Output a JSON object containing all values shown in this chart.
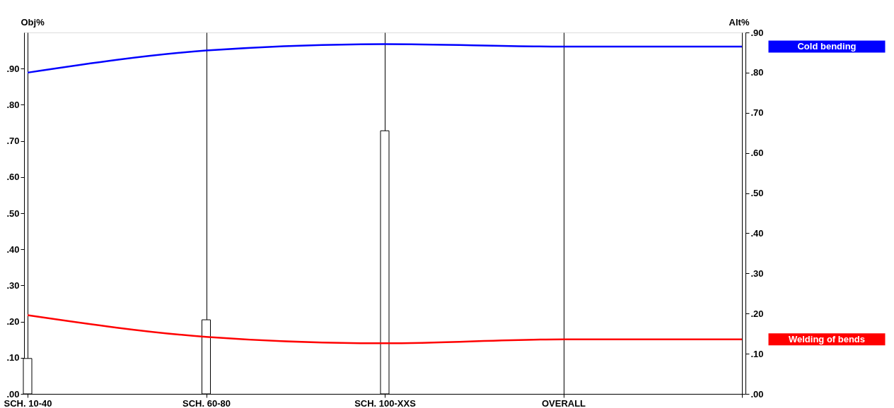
{
  "chart_data": {
    "type": "bar",
    "ylabel": "Obj%",
    "y2label": "Alt%",
    "categories": [
      "SCH. 10-40",
      "SCH. 60-80",
      "SCH. 100-XXS",
      "OVERALL",
      null
    ],
    "ylim": [
      0,
      1.0
    ],
    "yticks": [
      {
        "value": 0,
        "label": ".00"
      },
      {
        "value": 0.1,
        "label": ".10"
      },
      {
        "value": 0.2,
        "label": ".20"
      },
      {
        "value": 0.3,
        "label": ".30"
      },
      {
        "value": 0.4,
        "label": ".40"
      },
      {
        "value": 0.5,
        "label": ".50"
      },
      {
        "value": 0.6,
        "label": ".60"
      },
      {
        "value": 0.7,
        "label": ".70"
      },
      {
        "value": 0.8,
        "label": ".80"
      },
      {
        "value": 0.9,
        "label": ".90"
      }
    ],
    "y2lim": [
      0,
      0.9
    ],
    "y2ticks": [
      {
        "value": 0,
        "label": ".00"
      },
      {
        "value": 0.1,
        "label": ".10"
      },
      {
        "value": 0.2,
        "label": ".20"
      },
      {
        "value": 0.3,
        "label": ".30"
      },
      {
        "value": 0.4,
        "label": ".40"
      },
      {
        "value": 0.5,
        "label": ".50"
      },
      {
        "value": 0.6,
        "label": ".60"
      },
      {
        "value": 0.7,
        "label": ".70"
      },
      {
        "value": 0.8,
        "label": ".80"
      },
      {
        "value": 0.9,
        "label": ".90"
      }
    ],
    "grid": "x",
    "series": [
      {
        "color": "#ffffff",
        "values": [
          0.098,
          0.205,
          0.728,
          null,
          null
        ]
      },
      {
        "type": "line",
        "axis": "y2",
        "name": "Cold bending",
        "color": "#0000ff",
        "values": [
          0.8,
          0.855,
          0.871,
          0.865,
          0.865
        ]
      },
      {
        "type": "line",
        "axis": "y2",
        "name": "Welding of bends",
        "color": "#ff0000",
        "values": [
          0.196,
          0.142,
          0.126,
          0.136,
          0.136
        ]
      }
    ]
  }
}
